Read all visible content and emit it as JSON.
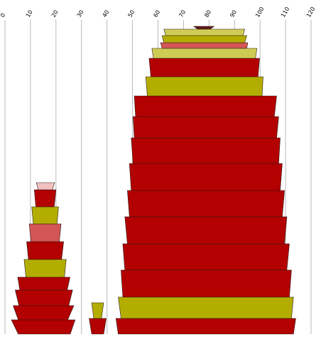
{
  "chart_data": {
    "type": "stacked-bands",
    "x_axis": {
      "ticks": [
        0,
        10,
        20,
        30,
        40,
        50,
        60,
        70,
        80,
        90,
        100,
        110,
        120
      ],
      "range": [
        0,
        120
      ],
      "grid": true,
      "position": "top",
      "label_rotation": -60
    },
    "colors": {
      "red": "#b30000",
      "olive": "#b3ad00",
      "yellow": "#cfcc55",
      "coral": "#d35555",
      "pink": "#f2c2c2",
      "maroon": "#5c1a1a"
    },
    "shapes": [
      {
        "name": "left",
        "bands": [
          {
            "color": "red",
            "xl": [
              2.5,
              27.5
            ],
            "xr": [
              5.2,
              25.6
            ]
          },
          {
            "color": "red",
            "xl": [
              3.2,
              27.0
            ],
            "xr": [
              5.2,
              24.6
            ]
          },
          {
            "color": "red",
            "xl": [
              4.0,
              26.5
            ],
            "xr": [
              5.5,
              25.0
            ]
          },
          {
            "color": "red",
            "xl": [
              5.0,
              25.5
            ],
            "xr": [
              5.8,
              24.4
            ]
          },
          {
            "color": "olive",
            "xl": [
              7.5,
              24.0
            ],
            "xr": [
              8.2,
              23.3
            ]
          },
          {
            "color": "red",
            "xl": [
              8.5,
              23.0
            ],
            "xr": [
              9.2,
              22.2
            ]
          },
          {
            "color": "coral",
            "xl": [
              9.5,
              22.0
            ],
            "xr": [
              10.2,
              21.3
            ]
          },
          {
            "color": "olive",
            "xl": [
              10.5,
              21.0
            ],
            "xr": [
              11.1,
              20.4
            ]
          },
          {
            "color": "red",
            "xl": [
              11.5,
              20.0
            ],
            "xr": [
              12.1,
              19.3
            ]
          },
          {
            "color": "pink",
            "xl": [
              12.3,
              19.5
            ],
            "xr": [
              13.1,
              18.5
            ]
          }
        ]
      },
      {
        "name": "middle",
        "bands": [
          {
            "color": "red",
            "xl": [
              33.0,
              39.7
            ],
            "xr": [
              34.0,
              38.7
            ]
          },
          {
            "color": "olive",
            "xl": [
              34.0,
              38.7
            ],
            "xr": [
              34.8,
              37.8
            ]
          }
        ]
      },
      {
        "name": "right",
        "bands": [
          {
            "color": "red",
            "xl": [
              43.5,
              114.0
            ],
            "xr": [
              44.4,
              113.1
            ]
          },
          {
            "color": "olive",
            "xl": [
              44.4,
              113.1
            ],
            "xr": [
              45.5,
              112.3
            ]
          },
          {
            "color": "red",
            "xl": [
              45.5,
              112.3
            ],
            "xr": [
              46.2,
              111.5
            ]
          },
          {
            "color": "red",
            "xl": [
              46.2,
              111.5
            ],
            "xr": [
              47.0,
              110.5
            ]
          },
          {
            "color": "red",
            "xl": [
              47.0,
              110.5
            ],
            "xr": [
              48.0,
              109.6
            ]
          },
          {
            "color": "red",
            "xl": [
              48.0,
              109.6
            ],
            "xr": [
              48.8,
              108.7
            ]
          },
          {
            "color": "red",
            "xl": [
              48.8,
              108.7
            ],
            "xr": [
              49.5,
              107.9
            ]
          },
          {
            "color": "red",
            "xl": [
              49.5,
              107.9
            ],
            "xr": [
              50.2,
              107.3
            ]
          },
          {
            "color": "red",
            "xl": [
              50.2,
              107.3
            ],
            "xr": [
              50.7,
              106.5
            ]
          },
          {
            "color": "red",
            "xl": [
              50.7,
              106.5
            ],
            "xr": [
              51.2,
              105.6
            ]
          },
          {
            "color": "olive",
            "xl": [
              55.2,
              101.2
            ],
            "xr": [
              55.8,
              100.8
            ]
          },
          {
            "color": "red",
            "xl": [
              56.5,
              99.8
            ],
            "xr": [
              57.2,
              99.2
            ]
          },
          {
            "color": "yellow",
            "xl": [
              57.6,
              98.8
            ],
            "xr": [
              58.2,
              98.2
            ]
          },
          {
            "color": "coral",
            "xl": [
              61.0,
              95.2
            ],
            "xr": [
              61.6,
              94.8
            ]
          },
          {
            "color": "olive",
            "xl": [
              61.6,
              94.8
            ],
            "xr": [
              62.3,
              94.0
            ]
          },
          {
            "color": "yellow",
            "xl": [
              62.3,
              94.0
            ],
            "xr": [
              63.0,
              93.3
            ]
          },
          {
            "color": "maroon",
            "xl": [
              74.0,
              82.0
            ],
            "xr": [
              75.5,
              80.5
            ]
          }
        ]
      }
    ]
  }
}
